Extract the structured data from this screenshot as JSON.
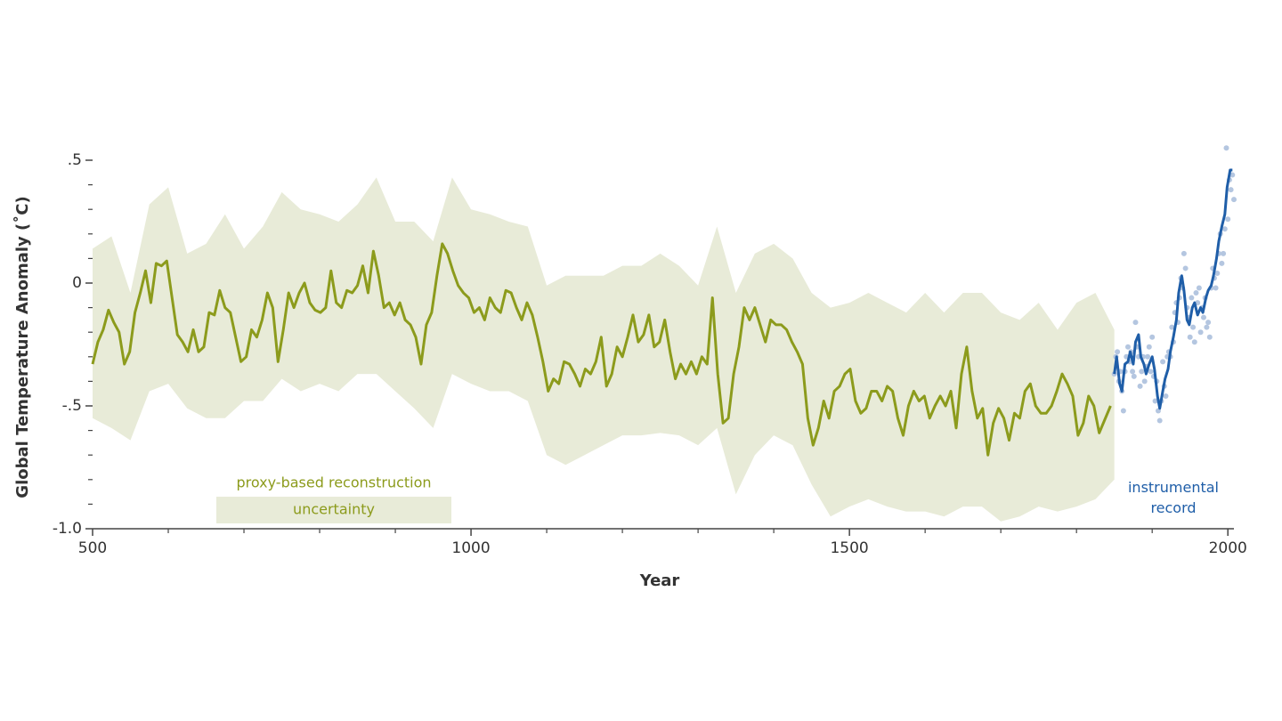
{
  "chart_data": {
    "type": "line",
    "xlabel": "Year",
    "ylabel": "Global Temperature Anomaly (˚C)",
    "xlim": [
      500,
      2008
    ],
    "ylim": [
      -1.0,
      0.55
    ],
    "xticks": [
      500,
      1000,
      1500,
      2000
    ],
    "xminorticks": [
      600,
      700,
      800,
      900,
      1100,
      1200,
      1300,
      1400,
      1600,
      1700,
      1800,
      1900
    ],
    "yticks": [
      {
        "value": 0.5,
        "label": ".5"
      },
      0,
      {
        "value": -0.5,
        "label": "-.5"
      },
      {
        "value": -1.0,
        "label": "-1.0"
      }
    ],
    "yminorticks": [
      0.4,
      0.3,
      0.2,
      0.1,
      -0.1,
      -0.2,
      -0.3,
      -0.4,
      -0.6,
      -0.7,
      -0.8,
      -0.9
    ],
    "band": {
      "name": "uncertainty",
      "color": "#e8ebd8",
      "x": [
        500,
        525,
        550,
        575,
        600,
        625,
        650,
        675,
        700,
        725,
        750,
        775,
        800,
        825,
        850,
        875,
        900,
        925,
        950,
        975,
        1000,
        1025,
        1050,
        1075,
        1100,
        1125,
        1150,
        1175,
        1200,
        1225,
        1250,
        1275,
        1300,
        1325,
        1350,
        1375,
        1400,
        1425,
        1450,
        1475,
        1500,
        1525,
        1550,
        1575,
        1600,
        1625,
        1650,
        1675,
        1700,
        1725,
        1750,
        1775,
        1800,
        1825,
        1850
      ],
      "upper": [
        0.14,
        0.19,
        -0.04,
        0.32,
        0.39,
        0.12,
        0.16,
        0.28,
        0.14,
        0.23,
        0.37,
        0.3,
        0.28,
        0.25,
        0.32,
        0.43,
        0.25,
        0.25,
        0.17,
        0.43,
        0.3,
        0.28,
        0.25,
        0.23,
        -0.01,
        0.03,
        0.03,
        0.03,
        0.07,
        0.07,
        0.12,
        0.07,
        -0.01,
        0.23,
        -0.04,
        0.12,
        0.16,
        0.1,
        -0.04,
        -0.1,
        -0.08,
        -0.04,
        -0.08,
        -0.12,
        -0.04,
        -0.12,
        -0.04,
        -0.04,
        -0.12,
        -0.15,
        -0.08,
        -0.19,
        -0.08,
        -0.04,
        -0.19
      ],
      "lower": [
        -0.55,
        -0.59,
        -0.64,
        -0.44,
        -0.41,
        -0.51,
        -0.55,
        -0.55,
        -0.48,
        -0.48,
        -0.39,
        -0.44,
        -0.41,
        -0.44,
        -0.37,
        -0.37,
        -0.44,
        -0.51,
        -0.59,
        -0.37,
        -0.41,
        -0.44,
        -0.44,
        -0.48,
        -0.7,
        -0.74,
        -0.7,
        -0.66,
        -0.62,
        -0.62,
        -0.61,
        -0.62,
        -0.66,
        -0.59,
        -0.86,
        -0.7,
        -0.62,
        -0.66,
        -0.82,
        -0.95,
        -0.91,
        -0.88,
        -0.91,
        -0.93,
        -0.93,
        -0.95,
        -0.91,
        -0.91,
        -0.97,
        -0.95,
        -0.91,
        -0.93,
        -0.91,
        -0.88,
        -0.8
      ]
    },
    "points": {
      "color": "#b4c6e0",
      "x": [
        1850,
        1852,
        1854,
        1856,
        1858,
        1860,
        1862,
        1864,
        1866,
        1868,
        1870,
        1872,
        1874,
        1876,
        1878,
        1880,
        1882,
        1884,
        1886,
        1888,
        1890,
        1892,
        1894,
        1896,
        1898,
        1900,
        1902,
        1904,
        1906,
        1908,
        1910,
        1912,
        1914,
        1916,
        1918,
        1920,
        1922,
        1924,
        1926,
        1928,
        1930,
        1932,
        1934,
        1936,
        1938,
        1940,
        1942,
        1944,
        1946,
        1948,
        1950,
        1952,
        1954,
        1956,
        1958,
        1960,
        1962,
        1964,
        1966,
        1968,
        1970,
        1972,
        1974,
        1976,
        1978,
        1980,
        1982,
        1984,
        1986,
        1988,
        1990,
        1992,
        1994,
        1996,
        1998,
        2000,
        2002,
        2004,
        2006,
        2008
      ],
      "values": [
        -0.37,
        -0.3,
        -0.28,
        -0.4,
        -0.36,
        -0.44,
        -0.52,
        -0.36,
        -0.3,
        -0.26,
        -0.32,
        -0.28,
        -0.36,
        -0.38,
        -0.16,
        -0.26,
        -0.3,
        -0.42,
        -0.36,
        -0.3,
        -0.4,
        -0.34,
        -0.3,
        -0.26,
        -0.36,
        -0.22,
        -0.38,
        -0.48,
        -0.4,
        -0.52,
        -0.56,
        -0.48,
        -0.32,
        -0.42,
        -0.46,
        -0.3,
        -0.28,
        -0.3,
        -0.18,
        -0.24,
        -0.12,
        -0.08,
        -0.16,
        -0.06,
        0.02,
        -0.02,
        0.12,
        0.06,
        -0.1,
        -0.14,
        -0.22,
        -0.06,
        -0.18,
        -0.24,
        -0.04,
        -0.08,
        -0.02,
        -0.2,
        -0.1,
        -0.14,
        -0.06,
        -0.18,
        -0.16,
        -0.22,
        -0.02,
        0.06,
        0.02,
        -0.02,
        0.04,
        0.12,
        0.2,
        0.08,
        0.12,
        0.22,
        0.55,
        0.26,
        0.42,
        0.38,
        0.44,
        0.34
      ]
    },
    "series": [
      {
        "name": "proxy-based reconstruction",
        "color": "#8c9b1c",
        "x": [
          500,
          507,
          514,
          521,
          528,
          535,
          542,
          549,
          556,
          563,
          570,
          577,
          584,
          591,
          598,
          605,
          612,
          619,
          626,
          633,
          640,
          647,
          654,
          661,
          668,
          675,
          682,
          689,
          696,
          703,
          710,
          717,
          724,
          731,
          738,
          745,
          752,
          759,
          766,
          773,
          780,
          787,
          794,
          801,
          808,
          815,
          822,
          829,
          836,
          843,
          850,
          857,
          864,
          871,
          878,
          885,
          892,
          899,
          906,
          913,
          920,
          927,
          934,
          941,
          948,
          955,
          962,
          969,
          976,
          983,
          990,
          997,
          1004,
          1011,
          1018,
          1025,
          1032,
          1039,
          1046,
          1053,
          1060,
          1067,
          1074,
          1081,
          1088,
          1095,
          1102,
          1109,
          1116,
          1123,
          1130,
          1137,
          1144,
          1151,
          1158,
          1165,
          1172,
          1179,
          1186,
          1193,
          1200,
          1207,
          1214,
          1221,
          1228,
          1235,
          1242,
          1249,
          1256,
          1263,
          1270,
          1277,
          1284,
          1291,
          1298,
          1305,
          1312,
          1319,
          1326,
          1333,
          1340,
          1347,
          1354,
          1361,
          1368,
          1375,
          1382,
          1389,
          1396,
          1403,
          1410,
          1417,
          1424,
          1431,
          1438,
          1445,
          1452,
          1459,
          1466,
          1473,
          1480,
          1487,
          1494,
          1501,
          1508,
          1515,
          1522,
          1529,
          1536,
          1543,
          1550,
          1557,
          1564,
          1571,
          1578,
          1585,
          1592,
          1599,
          1606,
          1613,
          1620,
          1627,
          1634,
          1641,
          1648,
          1655,
          1662,
          1669,
          1676,
          1683,
          1690,
          1697,
          1704,
          1711,
          1718,
          1725,
          1732,
          1739,
          1746,
          1753,
          1760,
          1767,
          1774,
          1781,
          1788,
          1795,
          1802,
          1809,
          1816,
          1823,
          1830,
          1845
        ],
        "values": [
          -0.33,
          -0.24,
          -0.19,
          -0.11,
          -0.16,
          -0.2,
          -0.33,
          -0.28,
          -0.12,
          -0.04,
          0.05,
          -0.08,
          0.08,
          0.07,
          0.09,
          -0.06,
          -0.21,
          -0.24,
          -0.28,
          -0.19,
          -0.28,
          -0.26,
          -0.12,
          -0.13,
          -0.03,
          -0.1,
          -0.12,
          -0.22,
          -0.32,
          -0.3,
          -0.19,
          -0.22,
          -0.15,
          -0.04,
          -0.1,
          -0.32,
          -0.19,
          -0.04,
          -0.1,
          -0.04,
          0,
          -0.08,
          -0.11,
          -0.12,
          -0.1,
          0.05,
          -0.08,
          -0.1,
          -0.03,
          -0.04,
          -0.01,
          0.07,
          -0.04,
          0.13,
          0.03,
          -0.1,
          -0.08,
          -0.13,
          -0.08,
          -0.15,
          -0.17,
          -0.22,
          -0.33,
          -0.17,
          -0.12,
          0.03,
          0.16,
          0.12,
          0.05,
          -0.01,
          -0.04,
          -0.06,
          -0.12,
          -0.1,
          -0.15,
          -0.06,
          -0.1,
          -0.12,
          -0.03,
          -0.04,
          -0.1,
          -0.15,
          -0.08,
          -0.13,
          -0.22,
          -0.32,
          -0.44,
          -0.39,
          -0.41,
          -0.32,
          -0.33,
          -0.37,
          -0.42,
          -0.35,
          -0.37,
          -0.32,
          -0.22,
          -0.42,
          -0.37,
          -0.26,
          -0.3,
          -0.22,
          -0.13,
          -0.24,
          -0.21,
          -0.13,
          -0.26,
          -0.24,
          -0.15,
          -0.28,
          -0.39,
          -0.33,
          -0.37,
          -0.32,
          -0.37,
          -0.3,
          -0.33,
          -0.06,
          -0.37,
          -0.57,
          -0.55,
          -0.37,
          -0.26,
          -0.1,
          -0.15,
          -0.1,
          -0.17,
          -0.24,
          -0.15,
          -0.17,
          -0.17,
          -0.19,
          -0.24,
          -0.28,
          -0.33,
          -0.55,
          -0.66,
          -0.59,
          -0.48,
          -0.55,
          -0.44,
          -0.42,
          -0.37,
          -0.35,
          -0.48,
          -0.53,
          -0.51,
          -0.44,
          -0.44,
          -0.48,
          -0.42,
          -0.44,
          -0.55,
          -0.62,
          -0.5,
          -0.44,
          -0.48,
          -0.46,
          -0.55,
          -0.5,
          -0.46,
          -0.5,
          -0.44,
          -0.59,
          -0.37,
          -0.26,
          -0.44,
          -0.55,
          -0.51,
          -0.7,
          -0.57,
          -0.51,
          -0.55,
          -0.64,
          -0.53,
          -0.55,
          -0.44,
          -0.41,
          -0.5,
          -0.53,
          -0.53,
          -0.5,
          -0.44,
          -0.37,
          -0.41,
          -0.46,
          -0.62,
          -0.57,
          -0.46,
          -0.5,
          -0.61,
          -0.5
        ]
      },
      {
        "name": "instrumental record",
        "color": "#1f5ea8",
        "x": [
          1850,
          1853,
          1857,
          1860,
          1864,
          1868,
          1871,
          1875,
          1878,
          1882,
          1885,
          1889,
          1892,
          1896,
          1900,
          1903,
          1907,
          1910,
          1914,
          1917,
          1921,
          1924,
          1928,
          1932,
          1935,
          1939,
          1942,
          1946,
          1949,
          1953,
          1956,
          1960,
          1964,
          1967,
          1971,
          1974,
          1978,
          1981,
          1985,
          1988,
          1992,
          1996,
          1999,
          2003,
          2006
        ],
        "values": [
          -0.37,
          -0.3,
          -0.41,
          -0.44,
          -0.33,
          -0.32,
          -0.28,
          -0.33,
          -0.24,
          -0.21,
          -0.3,
          -0.33,
          -0.37,
          -0.33,
          -0.3,
          -0.35,
          -0.46,
          -0.51,
          -0.44,
          -0.39,
          -0.35,
          -0.28,
          -0.22,
          -0.15,
          -0.04,
          0.03,
          -0.03,
          -0.15,
          -0.17,
          -0.1,
          -0.08,
          -0.13,
          -0.1,
          -0.12,
          -0.06,
          -0.03,
          -0.01,
          0.03,
          0.1,
          0.17,
          0.23,
          0.28,
          0.39,
          0.46,
          0.46
        ]
      }
    ]
  }
}
